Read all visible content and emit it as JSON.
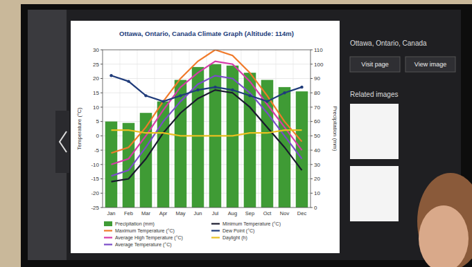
{
  "chart_data": {
    "type": "bar",
    "title": "Ottawa, Ontario, Canada Climate Graph (Altitude: 114m)",
    "y_label": "Temperature (°C)",
    "y2_label": "Precipitation (mm)",
    "categories": [
      "Jan",
      "Feb",
      "Mar",
      "Apr",
      "May",
      "Jun",
      "Jul",
      "Aug",
      "Sep",
      "Oct",
      "Nov",
      "Dec"
    ],
    "ylim": [
      -25,
      30
    ],
    "yticks": [
      -25,
      -20,
      -15,
      -10,
      -5,
      0,
      5,
      10,
      15,
      20,
      25,
      30
    ],
    "y2lim": [
      0,
      110
    ],
    "y2ticks": [
      0,
      10,
      20,
      30,
      40,
      50,
      60,
      70,
      80,
      90,
      100,
      110
    ],
    "grid": true,
    "legend": "bottom",
    "series": [
      {
        "name": "Precipitation (mm)",
        "type": "bar",
        "axis": "y2",
        "color": "#3f9b35",
        "values": [
          60,
          59,
          66,
          74,
          89,
          98,
          100,
          99,
          94,
          89,
          84,
          81
        ]
      },
      {
        "name": "Maximum Temperature (°C)",
        "type": "line",
        "color": "#f07a2a",
        "values": [
          -6,
          -4,
          3,
          12,
          20,
          26,
          30,
          28,
          22,
          14,
          5,
          -2
        ]
      },
      {
        "name": "Average High Temperature (°C)",
        "type": "line",
        "color": "#d63aa8",
        "values": [
          -10,
          -8,
          0,
          9,
          17,
          22,
          26,
          25,
          19,
          11,
          3,
          -5
        ]
      },
      {
        "name": "Average Temperature (°C)",
        "type": "line",
        "color": "#7a4cc8",
        "values": [
          -14,
          -12,
          -4,
          5,
          12,
          18,
          21,
          20,
          15,
          8,
          0,
          -8
        ]
      },
      {
        "name": "Minimum Temperature (°C)",
        "type": "line",
        "color": "#1a1a2e",
        "values": [
          -16,
          -15,
          -8,
          1,
          8,
          13,
          16,
          15,
          10,
          3,
          -4,
          -12
        ]
      },
      {
        "name": "Dew Point (°C)",
        "type": "line",
        "color": "#1f3b7a",
        "marker": "circle",
        "values": [
          21,
          19,
          14,
          12,
          14,
          16,
          17,
          16,
          14,
          12,
          15,
          17
        ]
      },
      {
        "name": "Daylight (h)",
        "type": "line",
        "color": "#e8c020",
        "values": [
          2,
          2,
          1,
          1,
          0,
          0,
          0,
          0,
          1,
          1,
          2,
          2
        ]
      }
    ]
  },
  "panel": {
    "title": "Ottawa, Ontario, Canada",
    "buttons": [
      "Visit page",
      "View image"
    ],
    "related": "Related images"
  }
}
